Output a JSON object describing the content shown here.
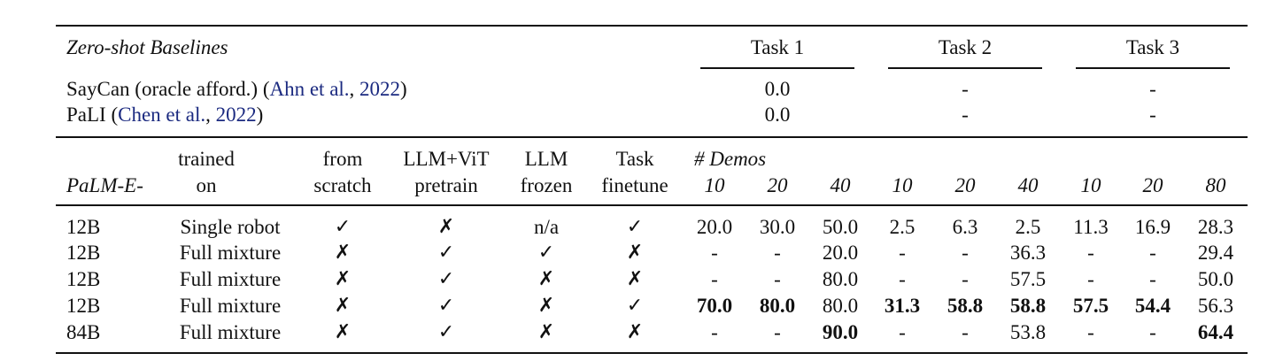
{
  "zero_shot": {
    "title": "Zero-shot Baselines",
    "task_headers": [
      "Task 1",
      "Task 2",
      "Task 3"
    ],
    "rows": [
      {
        "prefix": "SayCan (oracle afford.) (",
        "cite_author": "Ahn et al.",
        "sep": ", ",
        "cite_year": "2022",
        "suffix": ")",
        "values": [
          "0.0",
          "-",
          "-"
        ]
      },
      {
        "prefix": "PaLI (",
        "cite_author": "Chen et al.",
        "sep": ", ",
        "cite_year": "2022",
        "suffix": ")",
        "values": [
          "0.0",
          "-",
          "-"
        ]
      }
    ]
  },
  "header": {
    "model": "PaLM-E-",
    "trained_on": [
      "trained",
      "on"
    ],
    "from_scratch": [
      "from",
      "scratch"
    ],
    "llm_vit": [
      "LLM+ViT",
      "pretrain"
    ],
    "llm_frozen": [
      "LLM",
      "frozen"
    ],
    "task_finetune": [
      "Task",
      "finetune"
    ],
    "demos_label": "# Demos",
    "demos": [
      "10",
      "20",
      "40",
      "10",
      "20",
      "40",
      "10",
      "20",
      "80"
    ]
  },
  "rows": [
    {
      "size": "12B",
      "trained_on": "Single robot",
      "from_scratch": "✓",
      "llm_vit": "✗",
      "llm_frozen": "n/a",
      "finetune": "✓",
      "values": [
        "20.0",
        "30.0",
        "50.0",
        "2.5",
        "6.3",
        "2.5",
        "11.3",
        "16.9",
        "28.3"
      ],
      "bold": []
    },
    {
      "size": "12B",
      "trained_on": "Full mixture",
      "from_scratch": "✗",
      "llm_vit": "✓",
      "llm_frozen": "✓",
      "finetune": "✗",
      "values": [
        "-",
        "-",
        "20.0",
        "-",
        "-",
        "36.3",
        "-",
        "-",
        "29.4"
      ],
      "bold": []
    },
    {
      "size": "12B",
      "trained_on": "Full mixture",
      "from_scratch": "✗",
      "llm_vit": "✓",
      "llm_frozen": "✗",
      "finetune": "✗",
      "values": [
        "-",
        "-",
        "80.0",
        "-",
        "-",
        "57.5",
        "-",
        "-",
        "50.0"
      ],
      "bold": []
    },
    {
      "size": "12B",
      "trained_on": "Full mixture",
      "from_scratch": "✗",
      "llm_vit": "✓",
      "llm_frozen": "✗",
      "finetune": "✓",
      "values": [
        "70.0",
        "80.0",
        "80.0",
        "31.3",
        "58.8",
        "58.8",
        "57.5",
        "54.4",
        "56.3"
      ],
      "bold": [
        0,
        1,
        3,
        4,
        5,
        6,
        7
      ]
    },
    {
      "size": "84B",
      "trained_on": "Full mixture",
      "from_scratch": "✗",
      "llm_vit": "✓",
      "llm_frozen": "✗",
      "finetune": "✗",
      "values": [
        "-",
        "-",
        "90.0",
        "-",
        "-",
        "53.8",
        "-",
        "-",
        "64.4"
      ],
      "bold": [
        2,
        8
      ]
    }
  ]
}
